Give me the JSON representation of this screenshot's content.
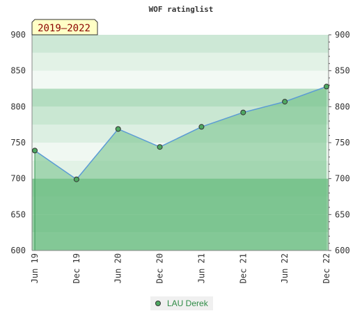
{
  "chart_data": {
    "type": "area",
    "title": "WOF ratinglist",
    "badge": "2019–2022",
    "categories": [
      "Jun 19",
      "Dec 19",
      "Jun 20",
      "Dec 20",
      "Jun 21",
      "Dec 21",
      "Jun 22",
      "Dec 22"
    ],
    "series": [
      {
        "name": "LAU Derek",
        "values": [
          739,
          699,
          769,
          744,
          772,
          792,
          807,
          828
        ]
      }
    ],
    "ylim": [
      600,
      900
    ],
    "yticks": [
      600,
      650,
      700,
      750,
      800,
      850,
      900
    ],
    "grid": true,
    "legend": "bottom-center",
    "colors": {
      "line": "#5b9bd5",
      "fill": "#6fbf85",
      "point": "#4fa862",
      "legend_text": "#2e8b45",
      "badge_bg": "#ffffc6",
      "badge_text": "#8b0000"
    }
  }
}
